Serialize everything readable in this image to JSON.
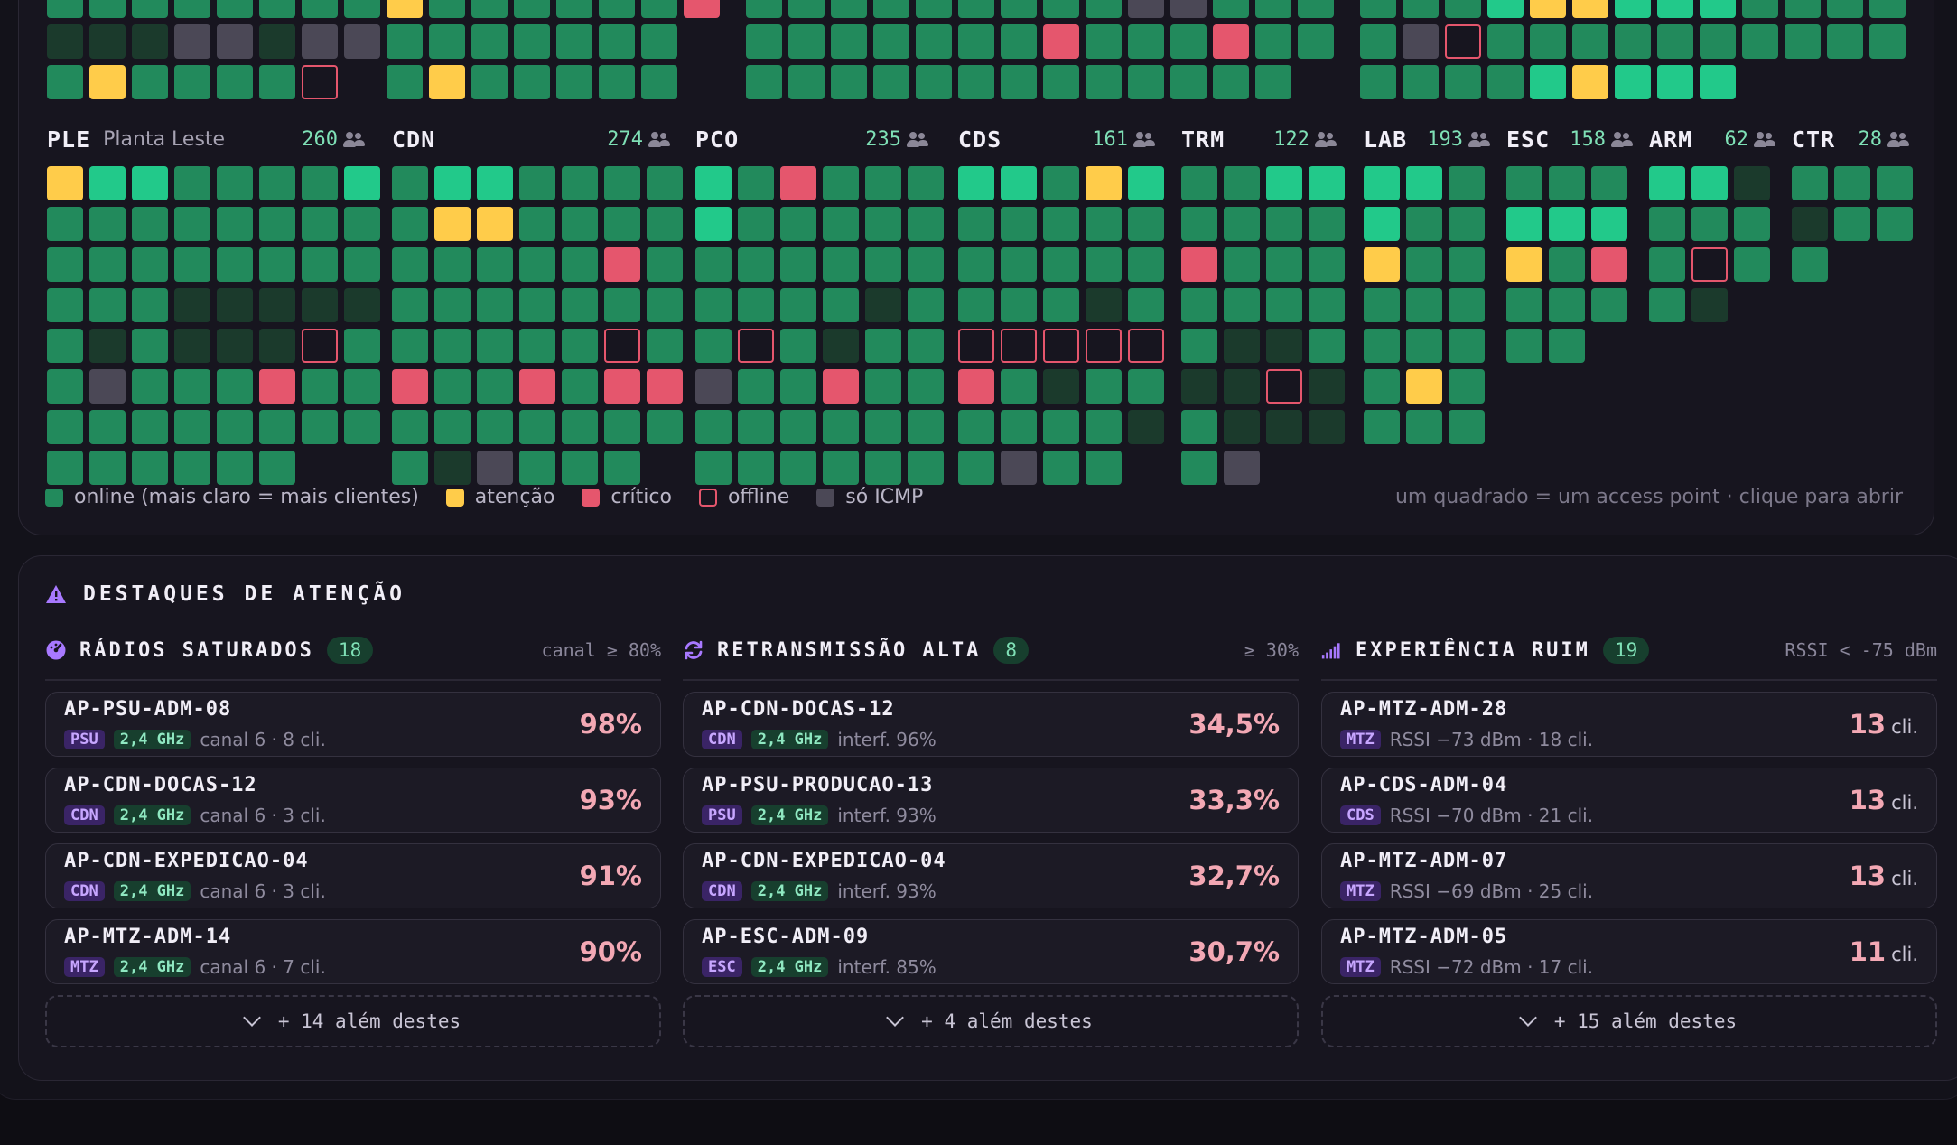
{
  "heatmap": {
    "top_groups": [
      {
        "cols": 16,
        "rows": [
          "ppppppppyppppppr",
          "dddiidiippppppp",
          "pyppppo pyppppp"
        ]
      },
      {
        "cols": 14,
        "rows": [
          "pppppppppiippp",
          "ppppppprppprpp",
          "ppppppppppppp"
        ]
      },
      {
        "cols": 13,
        "rows": [
          "pppLyyLLLpppp",
          "piopppppppppp",
          "ppppLyLLL"
        ]
      }
    ],
    "groups": [
      {
        "code": "PLE",
        "name": "Planta Leste",
        "count": "260",
        "cols": 8,
        "rows": [
          "yLLppppL",
          "pppppppp",
          "pppppppp",
          "pppddddd",
          "pdpdddop",
          "pippprpp",
          "pppppppp",
          "pppppp"
        ]
      },
      {
        "code": "CDN",
        "name": "",
        "count": "274",
        "cols": 7,
        "rows": [
          "pLLpppp",
          "pyyppppp",
          "ppppprp",
          "ppppppp",
          "pppppop",
          "rpprprr",
          "ppppppp",
          "pdippp"
        ]
      },
      {
        "code": "PCO",
        "name": "",
        "count": "235",
        "cols": 6,
        "rows": [
          "Lprppp",
          "Lppppp",
          "pppppp",
          "ppppdp",
          "popdpp",
          "ipprpp",
          "pppppp",
          "pppppp"
        ]
      },
      {
        "code": "CDS",
        "name": "",
        "count": "161",
        "cols": 5,
        "rows": [
          "LLpyL",
          "ppppp",
          "ppppp",
          "pppdp",
          "ooooo",
          "rpdpp",
          "ppppd",
          "pipp"
        ]
      },
      {
        "code": "TRM",
        "name": "",
        "count": "122",
        "cols": 4,
        "rows": [
          "ppLL",
          "pppp",
          "rppp",
          "pppp",
          "pddp",
          "ddod",
          "pddd",
          "pi"
        ]
      },
      {
        "code": "LAB",
        "name": "",
        "count": "193",
        "cols": 3,
        "rows": [
          "LLp",
          "Lpp",
          "ypp",
          "ppp",
          "ppp",
          "pyp",
          "ppp"
        ]
      },
      {
        "code": "ESC",
        "name": "",
        "count": "158",
        "cols": 3,
        "rows": [
          "ppp",
          "LLL",
          "ypr",
          "ppp",
          "pp"
        ]
      },
      {
        "code": "ARM",
        "name": "",
        "count": "62",
        "cols": 3,
        "rows": [
          "LLd",
          "ppp",
          "pop",
          "pd"
        ]
      },
      {
        "code": "CTR",
        "name": "",
        "count": "28",
        "cols": 3,
        "rows": [
          "ppp",
          "dpp",
          "p"
        ]
      }
    ],
    "legend": {
      "online": "online (mais claro = mais clientes)",
      "attention": "atenção",
      "critical": "crítico",
      "offline": "offline",
      "icmp": "só ICMP"
    },
    "note": "um quadrado = um access point · clique para abrir"
  },
  "highlights": {
    "title": "DESTAQUES DE ATENÇÃO",
    "columns": [
      {
        "icon": "gauge-icon",
        "title": "RÁDIOS SATURADOS",
        "count": "18",
        "threshold": "canal ≥ 80%",
        "items": [
          {
            "name": "AP-PSU-ADM-08",
            "site": "PSU",
            "band": "2,4 GHz",
            "meta": "canal 6 · 8 cli.",
            "value": "98%",
            "unit": ""
          },
          {
            "name": "AP-CDN-DOCAS-12",
            "site": "CDN",
            "band": "2,4 GHz",
            "meta": "canal 6 · 3 cli.",
            "value": "93%",
            "unit": ""
          },
          {
            "name": "AP-CDN-EXPEDICAO-04",
            "site": "CDN",
            "band": "2,4 GHz",
            "meta": "canal 6 · 3 cli.",
            "value": "91%",
            "unit": ""
          },
          {
            "name": "AP-MTZ-ADM-14",
            "site": "MTZ",
            "band": "2,4 GHz",
            "meta": "canal 6 · 7 cli.",
            "value": "90%",
            "unit": ""
          }
        ],
        "more": "+ 14 além destes"
      },
      {
        "icon": "refresh-icon",
        "title": "RETRANSMISSÃO ALTA",
        "count": "8",
        "threshold": "≥ 30%",
        "items": [
          {
            "name": "AP-CDN-DOCAS-12",
            "site": "CDN",
            "band": "2,4 GHz",
            "meta": "interf. 96%",
            "value": "34,5%",
            "unit": ""
          },
          {
            "name": "AP-PSU-PRODUCAO-13",
            "site": "PSU",
            "band": "2,4 GHz",
            "meta": "interf. 93%",
            "value": "33,3%",
            "unit": ""
          },
          {
            "name": "AP-CDN-EXPEDICAO-04",
            "site": "CDN",
            "band": "2,4 GHz",
            "meta": "interf. 93%",
            "value": "32,7%",
            "unit": ""
          },
          {
            "name": "AP-ESC-ADM-09",
            "site": "ESC",
            "band": "2,4 GHz",
            "meta": "interf. 85%",
            "value": "30,7%",
            "unit": ""
          }
        ],
        "more": "+ 4 além destes"
      },
      {
        "icon": "signal-icon",
        "title": "EXPERIÊNCIA RUIM",
        "count": "19",
        "threshold": "RSSI < -75 dBm",
        "items": [
          {
            "name": "AP-MTZ-ADM-28",
            "site": "MTZ",
            "band": "",
            "meta": "RSSI −73 dBm · 18 cli.",
            "value": "13",
            "unit": "cli."
          },
          {
            "name": "AP-CDS-ADM-04",
            "site": "CDS",
            "band": "",
            "meta": "RSSI −70 dBm · 21 cli.",
            "value": "13",
            "unit": "cli."
          },
          {
            "name": "AP-MTZ-ADM-07",
            "site": "MTZ",
            "band": "",
            "meta": "RSSI −69 dBm · 25 cli.",
            "value": "13",
            "unit": "cli."
          },
          {
            "name": "AP-MTZ-ADM-05",
            "site": "MTZ",
            "band": "",
            "meta": "RSSI −72 dBm · 17 cli.",
            "value": "11",
            "unit": "cli."
          }
        ],
        "more": "+ 15 além destes"
      }
    ]
  },
  "colors": {
    "online": "#228a5c",
    "online_bright": "#22c98a",
    "attention": "#ffcc4a",
    "critical": "#e5566d",
    "icmp": "#4b4856",
    "accent": "#a879ff"
  }
}
